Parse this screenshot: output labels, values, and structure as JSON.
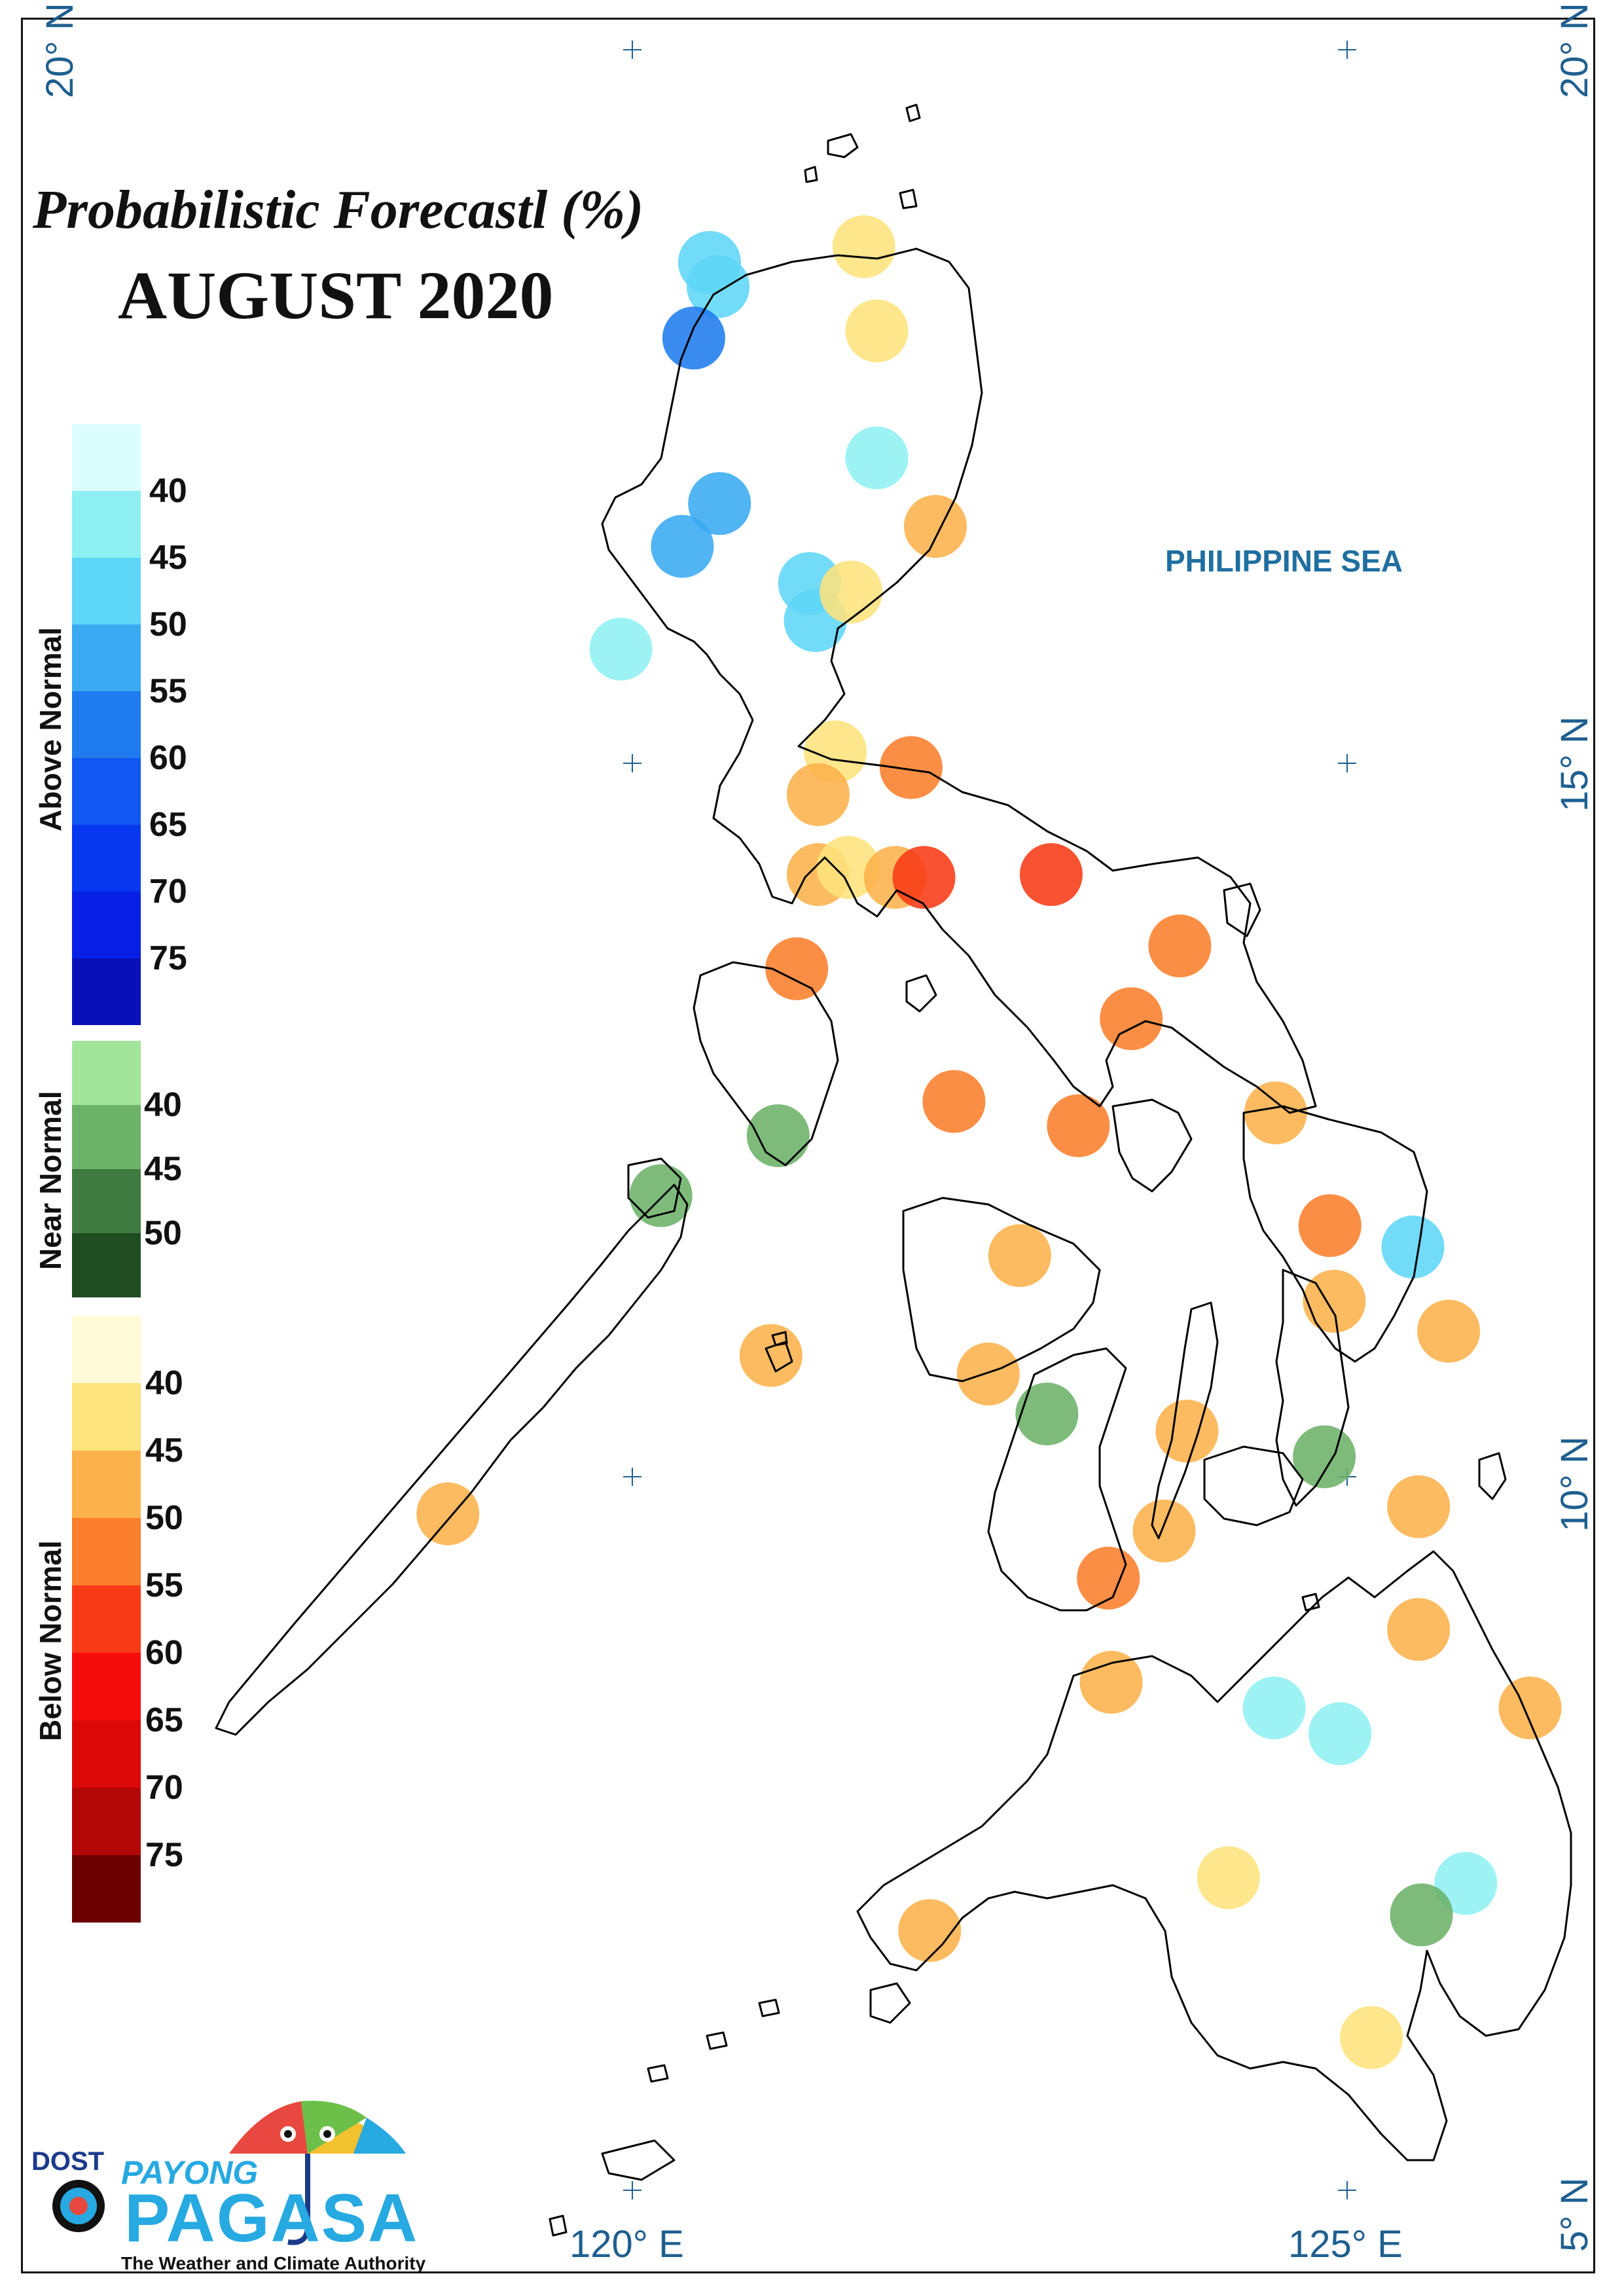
{
  "title": "Probabilistic Forecastl (%)",
  "subtitle": "AUGUST 2020",
  "sea_label": "PHILIPPINE SEA",
  "grid_labels": {
    "lat_20": "20° N",
    "lat_15": "15° N",
    "lat_10": "10° N",
    "lat_5": "5° N",
    "lon_120": "120° E",
    "lon_125": "125° E"
  },
  "legend": {
    "above_normal": {
      "label": "Above Normal",
      "ticks": [
        "40",
        "45",
        "50",
        "55",
        "60",
        "65",
        "70",
        "75"
      ],
      "colors": [
        "#dcfdfd",
        "#8ff0f3",
        "#5ed6f7",
        "#39aaf1",
        "#1f7bee",
        "#1157f1",
        "#0737ee",
        "#0820e6",
        "#0a10b8"
      ]
    },
    "near_normal": {
      "label": "Near Normal",
      "ticks": [
        "40",
        "45",
        "50"
      ],
      "colors": [
        "#a3e49b",
        "#6cb269",
        "#3f7b41",
        "#204c22"
      ]
    },
    "below_normal": {
      "label": "Below Normal",
      "ticks": [
        "40",
        "45",
        "50",
        "55",
        "60",
        "65",
        "70",
        "75"
      ],
      "colors": [
        "#fffbd8",
        "#fde37b",
        "#fcb24a",
        "#fa7e2b",
        "#f83a16",
        "#f50c0c",
        "#dc0808",
        "#b30606",
        "#6b0000"
      ]
    }
  },
  "stations": [
    {
      "lon": 120.54,
      "lat": 18.51,
      "category": "above",
      "pct": 45
    },
    {
      "lon": 120.6,
      "lat": 18.34,
      "category": "above",
      "pct": 45
    },
    {
      "lon": 120.43,
      "lat": 17.98,
      "category": "above",
      "pct": 55
    },
    {
      "lon": 121.62,
      "lat": 18.62,
      "category": "below",
      "pct": 40
    },
    {
      "lon": 121.71,
      "lat": 18.03,
      "category": "below",
      "pct": 40
    },
    {
      "lon": 121.71,
      "lat": 17.14,
      "category": "above",
      "pct": 40
    },
    {
      "lon": 122.12,
      "lat": 16.66,
      "category": "below",
      "pct": 45
    },
    {
      "lon": 120.61,
      "lat": 16.82,
      "category": "above",
      "pct": 50
    },
    {
      "lon": 120.35,
      "lat": 16.52,
      "category": "above",
      "pct": 50
    },
    {
      "lon": 121.24,
      "lat": 16.26,
      "category": "above",
      "pct": 45
    },
    {
      "lon": 121.28,
      "lat": 16.0,
      "category": "above",
      "pct": 45
    },
    {
      "lon": 121.53,
      "lat": 16.2,
      "category": "below",
      "pct": 40
    },
    {
      "lon": 119.92,
      "lat": 15.8,
      "category": "above",
      "pct": 40
    },
    {
      "lon": 121.42,
      "lat": 15.08,
      "category": "below",
      "pct": 40
    },
    {
      "lon": 121.95,
      "lat": 14.97,
      "category": "below",
      "pct": 50
    },
    {
      "lon": 121.3,
      "lat": 14.78,
      "category": "below",
      "pct": 45
    },
    {
      "lon": 121.3,
      "lat": 14.22,
      "category": "below",
      "pct": 45
    },
    {
      "lon": 121.51,
      "lat": 14.27,
      "category": "below",
      "pct": 40
    },
    {
      "lon": 121.84,
      "lat": 14.2,
      "category": "below",
      "pct": 45
    },
    {
      "lon": 122.04,
      "lat": 14.2,
      "category": "below",
      "pct": 55
    },
    {
      "lon": 122.93,
      "lat": 14.22,
      "category": "below",
      "pct": 55
    },
    {
      "lon": 123.83,
      "lat": 13.72,
      "category": "below",
      "pct": 50
    },
    {
      "lon": 121.15,
      "lat": 13.56,
      "category": "below",
      "pct": 50
    },
    {
      "lon": 123.49,
      "lat": 13.21,
      "category": "below",
      "pct": 50
    },
    {
      "lon": 122.25,
      "lat": 12.63,
      "category": "below",
      "pct": 50
    },
    {
      "lon": 121.02,
      "lat": 12.39,
      "category": "near",
      "pct": 40
    },
    {
      "lon": 123.12,
      "lat": 12.46,
      "category": "below",
      "pct": 50
    },
    {
      "lon": 124.5,
      "lat": 12.55,
      "category": "below",
      "pct": 45
    },
    {
      "lon": 120.2,
      "lat": 11.97,
      "category": "near",
      "pct": 40
    },
    {
      "lon": 124.88,
      "lat": 11.76,
      "category": "below",
      "pct": 50
    },
    {
      "lon": 125.46,
      "lat": 11.61,
      "category": "above",
      "pct": 45
    },
    {
      "lon": 122.71,
      "lat": 11.55,
      "category": "below",
      "pct": 45
    },
    {
      "lon": 124.91,
      "lat": 11.23,
      "category": "below",
      "pct": 45
    },
    {
      "lon": 125.71,
      "lat": 11.02,
      "category": "below",
      "pct": 45
    },
    {
      "lon": 120.97,
      "lat": 10.85,
      "category": "below",
      "pct": 45
    },
    {
      "lon": 122.49,
      "lat": 10.72,
      "category": "below",
      "pct": 45
    },
    {
      "lon": 122.9,
      "lat": 10.44,
      "category": "near",
      "pct": 40
    },
    {
      "lon": 123.88,
      "lat": 10.32,
      "category": "below",
      "pct": 45
    },
    {
      "lon": 124.84,
      "lat": 10.14,
      "category": "near",
      "pct": 40
    },
    {
      "lon": 125.5,
      "lat": 9.79,
      "category": "below",
      "pct": 45
    },
    {
      "lon": 118.71,
      "lat": 9.74,
      "category": "below",
      "pct": 45
    },
    {
      "lon": 123.72,
      "lat": 9.62,
      "category": "below",
      "pct": 45
    },
    {
      "lon": 123.33,
      "lat": 9.29,
      "category": "below",
      "pct": 50
    },
    {
      "lon": 125.5,
      "lat": 8.93,
      "category": "below",
      "pct": 45
    },
    {
      "lon": 123.35,
      "lat": 8.56,
      "category": "below",
      "pct": 45
    },
    {
      "lon": 124.49,
      "lat": 8.38,
      "category": "above",
      "pct": 40
    },
    {
      "lon": 124.95,
      "lat": 8.2,
      "category": "above",
      "pct": 40
    },
    {
      "lon": 126.28,
      "lat": 8.38,
      "category": "below",
      "pct": 45
    },
    {
      "lon": 124.17,
      "lat": 7.19,
      "category": "below",
      "pct": 40
    },
    {
      "lon": 125.83,
      "lat": 7.15,
      "category": "above",
      "pct": 40
    },
    {
      "lon": 125.52,
      "lat": 6.93,
      "category": "near",
      "pct": 40
    },
    {
      "lon": 122.08,
      "lat": 6.82,
      "category": "below",
      "pct": 45
    },
    {
      "lon": 125.17,
      "lat": 6.07,
      "category": "below",
      "pct": 40
    }
  ],
  "logo": {
    "dost": "DOST",
    "payong": "PAYONG",
    "pagasa": "PAGASA",
    "tagline": "The Weather and Climate Authority"
  }
}
